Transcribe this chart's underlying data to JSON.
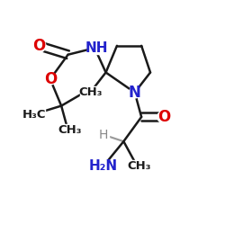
{
  "bg_color": "#ffffff",
  "bond_color": "#1a1a1a",
  "bond_width": 1.8,
  "fig_size": [
    2.5,
    2.5
  ],
  "dpi": 100,
  "xlim": [
    0,
    1
  ],
  "ylim": [
    0,
    1
  ]
}
